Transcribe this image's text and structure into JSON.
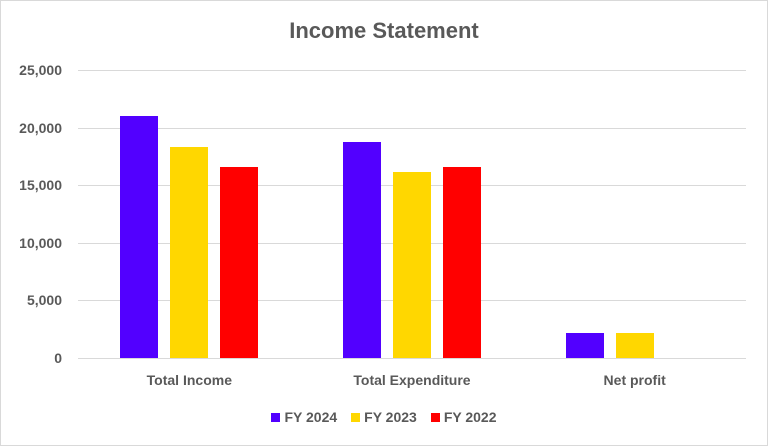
{
  "chart_data": {
    "type": "bar",
    "title": "Income Statement",
    "xlabel": "",
    "ylabel": "",
    "categories": [
      "Total Income",
      "Total Expenditure",
      "Net profit"
    ],
    "series": [
      {
        "name": "FY 2024",
        "color": "#5200FF",
        "values": [
          21000,
          18750,
          2200
        ]
      },
      {
        "name": "FY 2023",
        "color": "#FFD700",
        "values": [
          18300,
          16150,
          2200
        ]
      },
      {
        "name": "FY 2022",
        "color": "#FF0000",
        "values": [
          16600,
          16600,
          0
        ]
      }
    ],
    "ylim": [
      0,
      25000
    ],
    "yticks": [
      "0",
      "5,000",
      "10,000",
      "15,000",
      "20,000",
      "25,000"
    ],
    "grid": true,
    "legend_position": "bottom"
  }
}
